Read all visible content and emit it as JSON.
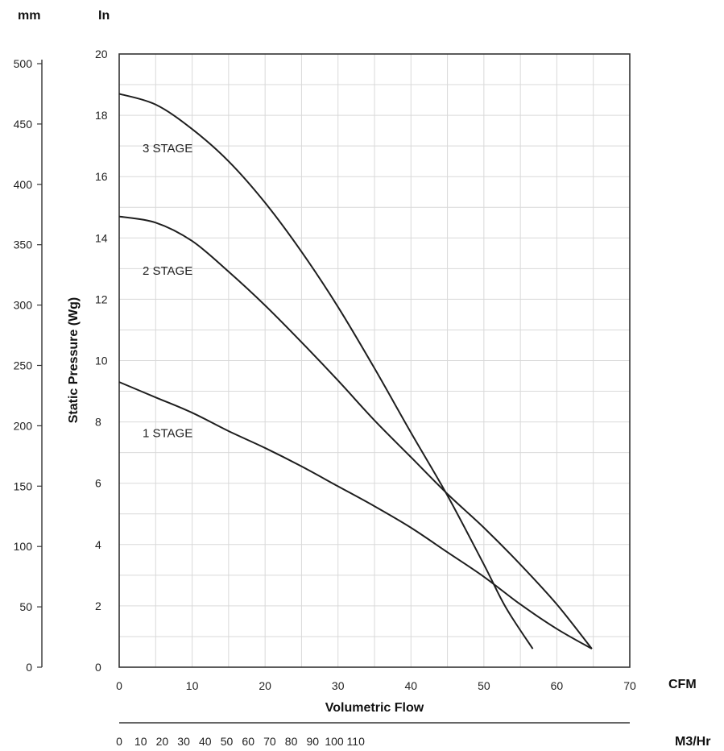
{
  "chart_data": {
    "type": "line",
    "title": "",
    "xlabel": "Volumetric Flow",
    "ylabel": "Static Pressure (Wg)",
    "x_unit": "CFM",
    "y_unit": "In",
    "xlim": [
      0,
      70
    ],
    "ylim": [
      0,
      20
    ],
    "x_ticks": [
      "0",
      "10",
      "20",
      "30",
      "40",
      "50",
      "60",
      "70"
    ],
    "y_ticks": [
      "0",
      "2",
      "4",
      "6",
      "8",
      "10",
      "12",
      "14",
      "16",
      "18",
      "20"
    ],
    "grid": true,
    "secondary_y_axis": {
      "unit": "mm",
      "ticks": [
        "0",
        "50",
        "100",
        "150",
        "200",
        "250",
        "300",
        "350",
        "400",
        "450",
        "500"
      ],
      "values": [
        0,
        50,
        100,
        150,
        200,
        250,
        300,
        350,
        400,
        450,
        500
      ]
    },
    "secondary_x_axis": {
      "unit": "M3/Hr",
      "ticks": [
        "0",
        "10",
        "20",
        "30",
        "40",
        "50",
        "60",
        "70",
        "80",
        "90",
        "100",
        "110"
      ],
      "values": [
        0,
        10,
        20,
        30,
        40,
        50,
        60,
        70,
        80,
        90,
        100,
        110
      ]
    },
    "series": [
      {
        "name": "1 STAGE",
        "x": [
          0,
          5,
          10,
          15,
          20,
          25,
          30,
          35,
          40,
          45,
          50,
          55,
          60,
          64.8
        ],
        "y": [
          9.3,
          8.8,
          8.3,
          7.7,
          7.15,
          6.55,
          5.9,
          5.25,
          4.55,
          3.75,
          2.95,
          2.05,
          1.25,
          0.6
        ]
      },
      {
        "name": "2 STAGE",
        "x": [
          0,
          5,
          10,
          15,
          20,
          25,
          30,
          35,
          40,
          45,
          50,
          55,
          60,
          64.8
        ],
        "y": [
          14.7,
          14.5,
          13.9,
          12.9,
          11.8,
          10.6,
          9.35,
          8.05,
          6.85,
          5.65,
          4.55,
          3.35,
          2.05,
          0.6
        ]
      },
      {
        "name": "3 STAGE",
        "x": [
          0,
          5,
          10,
          15,
          20,
          25,
          30,
          35,
          40,
          45,
          50,
          53,
          56.7
        ],
        "y": [
          18.7,
          18.35,
          17.55,
          16.5,
          15.15,
          13.55,
          11.75,
          9.75,
          7.65,
          5.6,
          3.35,
          1.95,
          0.6
        ]
      }
    ]
  }
}
